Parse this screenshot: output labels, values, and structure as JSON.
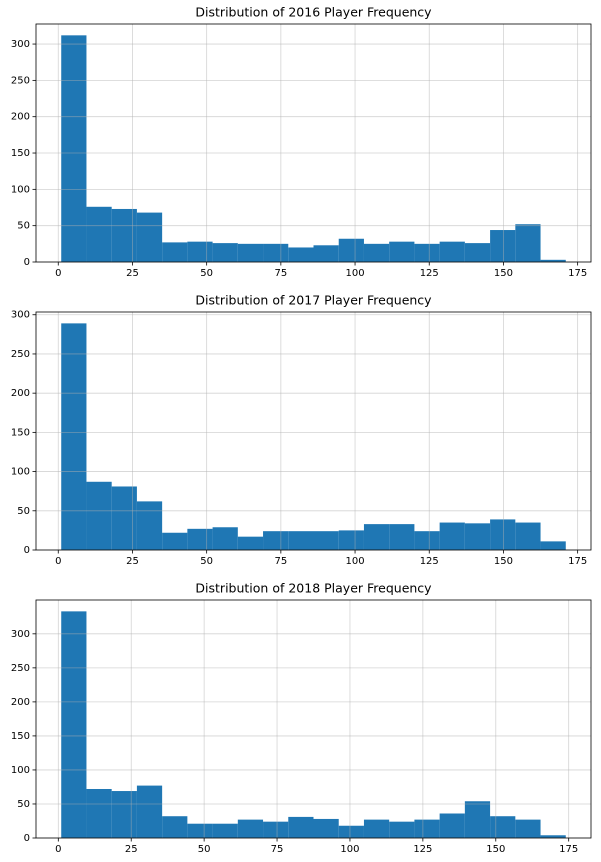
{
  "chart_data": [
    {
      "type": "histogram",
      "title": "Distribution of 2016 Player Frequency",
      "bins": [
        1,
        9.5,
        18,
        26.5,
        35,
        43.5,
        52,
        60.5,
        69,
        77.5,
        86,
        94.5,
        103,
        111.5,
        120,
        128.5,
        137,
        145.5,
        154,
        162.5,
        171
      ],
      "values": [
        312,
        76,
        73,
        68,
        27,
        28,
        26,
        25,
        25,
        20,
        23,
        32,
        25,
        28,
        25,
        28,
        26,
        44,
        52,
        3
      ],
      "color": "#1f77b4",
      "xlim": [
        -7.5,
        179.5
      ],
      "ylim": [
        0,
        327.6
      ],
      "xticks": [
        0,
        25,
        50,
        75,
        100,
        125,
        150,
        175
      ],
      "yticks": [
        0,
        50,
        100,
        150,
        200,
        250,
        300
      ],
      "grid": true
    },
    {
      "type": "histogram",
      "title": "Distribution of 2017 Player Frequency",
      "bins": [
        1,
        9.5,
        18,
        26.5,
        35,
        43.5,
        52,
        60.5,
        69,
        77.5,
        86,
        94.5,
        103,
        111.5,
        120,
        128.5,
        137,
        145.5,
        154,
        162.5,
        171
      ],
      "values": [
        289,
        87,
        81,
        62,
        22,
        27,
        29,
        17,
        24,
        24,
        24,
        25,
        33,
        33,
        24,
        35,
        34,
        39,
        35,
        11
      ],
      "color": "#1f77b4",
      "xlim": [
        -7.5,
        179.5
      ],
      "ylim": [
        0,
        303.5
      ],
      "xticks": [
        0,
        25,
        50,
        75,
        100,
        125,
        150,
        175
      ],
      "yticks": [
        0,
        50,
        100,
        150,
        200,
        250,
        300
      ],
      "grid": true
    },
    {
      "type": "histogram",
      "title": "Distribution of 2018 Player Frequency",
      "bins": [
        1,
        9.65,
        18.3,
        26.95,
        35.6,
        44.25,
        52.9,
        61.55,
        70.2,
        78.85,
        87.5,
        96.15,
        104.8,
        113.45,
        122.1,
        130.75,
        139.4,
        148.05,
        156.7,
        165.35,
        174
      ],
      "values": [
        333,
        72,
        69,
        77,
        32,
        21,
        21,
        27,
        24,
        31,
        28,
        18,
        27,
        24,
        27,
        36,
        54,
        32,
        27,
        4
      ],
      "color": "#1f77b4",
      "xlim": [
        -7.65,
        182.65
      ],
      "ylim": [
        0,
        349.7
      ],
      "xticks": [
        0,
        25,
        50,
        75,
        100,
        125,
        150,
        175
      ],
      "yticks": [
        0,
        50,
        100,
        150,
        200,
        250,
        300
      ],
      "grid": true
    }
  ]
}
